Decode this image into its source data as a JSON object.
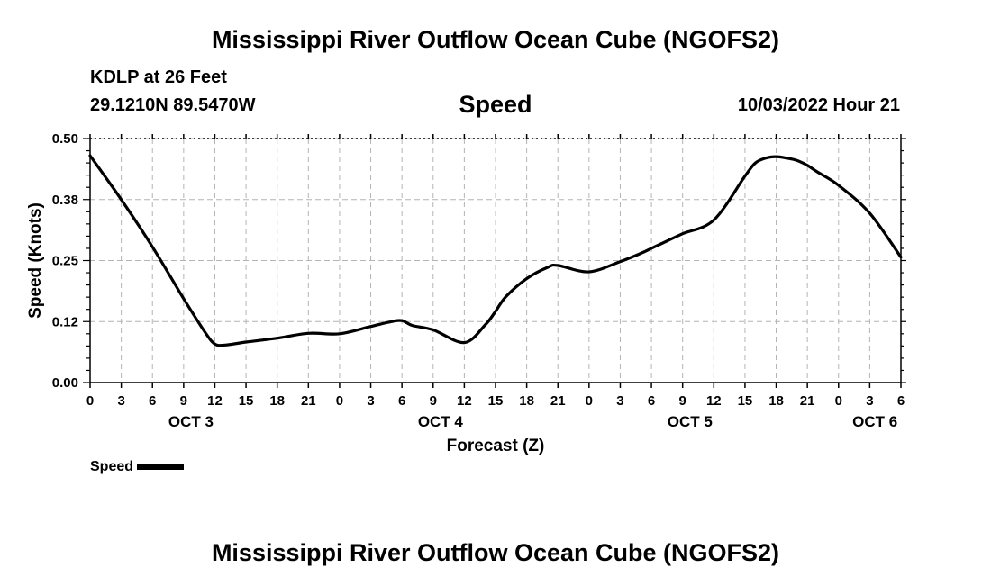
{
  "page": {
    "title": "Mississippi River Outflow Ocean Cube (NGOFS2)",
    "station_name": "KDLP at 26 Feet",
    "station_coords": "29.1210N  89.5470W",
    "panel_title": "Speed",
    "timestamp": "10/03/2022 Hour 21",
    "next_title": "Mississippi River Outflow Ocean Cube (NGOFS2)"
  },
  "chart_data": {
    "type": "line",
    "title": "Speed",
    "xlabel": "Forecast (Z)",
    "ylabel": "Speed (Knots)",
    "x_unit": "forecast hours from OCT 3 00Z",
    "xlim": [
      0,
      78
    ],
    "ylim": [
      0,
      0.5
    ],
    "y_ticks": [
      0,
      0.125,
      0.25,
      0.375,
      0.5
    ],
    "y_tick_labels": [
      "0.00",
      "0.12",
      "0.25",
      "0.38",
      "0.50"
    ],
    "x_ticks": [
      0,
      3,
      6,
      9,
      12,
      15,
      18,
      21,
      24,
      27,
      30,
      33,
      36,
      39,
      42,
      45,
      48,
      51,
      54,
      57,
      60,
      63,
      66,
      69,
      72,
      75,
      78
    ],
    "x_tick_labels": [
      "0",
      "3",
      "6",
      "9",
      "12",
      "15",
      "18",
      "21",
      "0",
      "3",
      "6",
      "9",
      "12",
      "15",
      "18",
      "21",
      "0",
      "3",
      "6",
      "9",
      "12",
      "15",
      "18",
      "21",
      "0",
      "3",
      "6"
    ],
    "date_labels": [
      {
        "label": "OCT 3",
        "x": 9.7
      },
      {
        "label": "OCT 4",
        "x": 33.7
      },
      {
        "label": "OCT 5",
        "x": 57.7
      },
      {
        "label": "OCT 6",
        "x": 75.5
      }
    ],
    "grid": true,
    "legend": {
      "position": "bottom-left",
      "entries": [
        "Speed"
      ]
    },
    "series": [
      {
        "name": "Speed",
        "x": [
          0,
          3,
          6,
          9,
          11,
          12,
          13,
          15,
          18,
          21,
          24,
          27,
          29,
          30,
          31,
          33,
          36,
          38,
          39,
          40,
          42,
          44,
          45,
          48,
          51,
          53,
          54,
          55,
          57,
          60,
          63,
          64,
          65,
          66,
          67,
          68,
          69,
          70,
          72,
          75,
          78
        ],
        "y": [
          0.465,
          0.375,
          0.278,
          0.172,
          0.105,
          0.079,
          0.077,
          0.083,
          0.091,
          0.101,
          0.1,
          0.115,
          0.125,
          0.127,
          0.117,
          0.108,
          0.082,
          0.118,
          0.146,
          0.176,
          0.213,
          0.236,
          0.24,
          0.227,
          0.248,
          0.265,
          0.275,
          0.285,
          0.305,
          0.333,
          0.423,
          0.45,
          0.46,
          0.463,
          0.46,
          0.455,
          0.445,
          0.431,
          0.404,
          0.347,
          0.257
        ]
      }
    ]
  }
}
